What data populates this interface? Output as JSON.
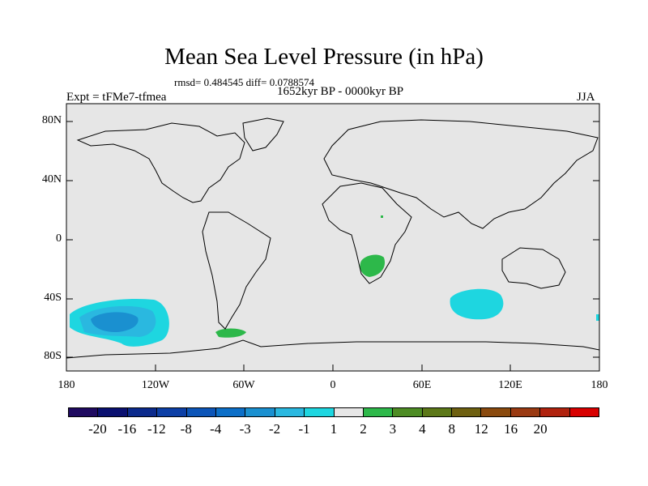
{
  "title": "Mean Sea Level Pressure (in hPa)",
  "stats": "rmsd= 0.484545 diff= 0.0788574",
  "period": "1652kyr BP - 0000kyr BP",
  "experiment": "Expt = tFMe7-tfmea",
  "season": "JJA",
  "chart_data": {
    "type": "heatmap",
    "projection": "cylindrical-equidistant",
    "lon_range": [
      -180,
      180
    ],
    "lat_range": [
      -90,
      90
    ],
    "lat_ticks": [
      "80N",
      "40N",
      "0",
      "40S",
      "80S"
    ],
    "lon_ticks": [
      "180",
      "120W",
      "60W",
      "0",
      "60E",
      "120E",
      "180"
    ],
    "background_color": "#e6e6e6",
    "colorbar": {
      "levels": [
        "-20",
        "-16",
        "-12",
        "-8",
        "-4",
        "-3",
        "-2",
        "-1",
        "1",
        "2",
        "3",
        "4",
        "8",
        "12",
        "16",
        "20"
      ],
      "colors": [
        "#1f0a60",
        "#0a1070",
        "#0b2a8c",
        "#0c3fa6",
        "#0c55b8",
        "#0c6fc8",
        "#1a90d0",
        "#2ab8e0",
        "#1ed6e0",
        "#e6e6e6",
        "#2db84a",
        "#4d8c24",
        "#5c7818",
        "#6e6010",
        "#8a4a0e",
        "#9a3a12",
        "#b0220e",
        "#d80000"
      ]
    },
    "anomalies": [
      {
        "region": "South Pacific",
        "lon_center": -145,
        "lat_center": -55,
        "value_range": "-3 to -1"
      },
      {
        "region": "South Pacific core",
        "lon_center": -140,
        "lat_center": -52,
        "value_range": "-4 to -3"
      },
      {
        "region": "Southern Indian Ocean",
        "lon_center": 98,
        "lat_center": -44,
        "value_range": "-2 to -1"
      },
      {
        "region": "Southern Africa",
        "lon_center": 28,
        "lat_center": -18,
        "value_range": "1 to 2"
      },
      {
        "region": "Drake Passage",
        "lon_center": -60,
        "lat_center": -64,
        "value_range": "1 to 2"
      }
    ]
  }
}
